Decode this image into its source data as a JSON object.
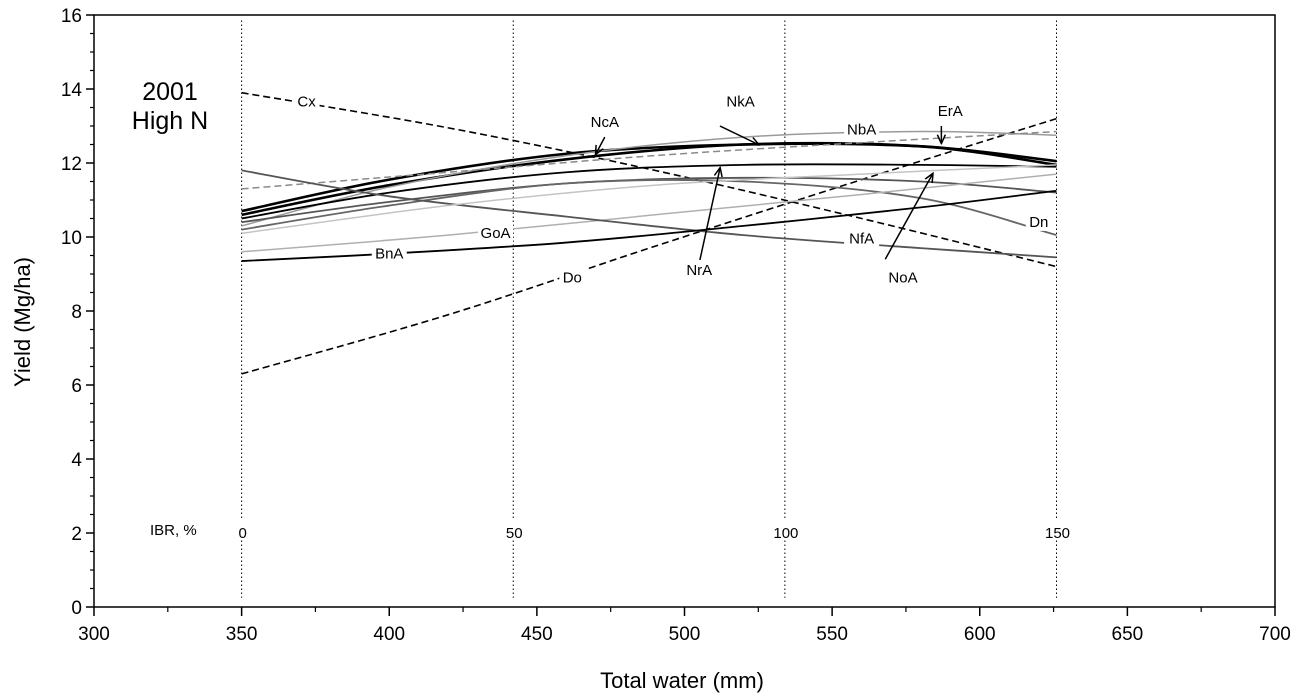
{
  "chart_data": {
    "type": "line",
    "title": "",
    "panel_title_lines": [
      "2001",
      "High N"
    ],
    "xlabel": "Total water (mm)",
    "ylabel": "Yield (Mg/ha)",
    "xlim": [
      300,
      700
    ],
    "ylim": [
      0,
      16
    ],
    "xticks": [
      300,
      350,
      400,
      450,
      500,
      550,
      600,
      650,
      700
    ],
    "yticks": [
      0,
      2,
      4,
      6,
      8,
      10,
      12,
      14,
      16
    ],
    "grid": false,
    "legend": "none",
    "reference_lines": {
      "label": "IBR, %",
      "lines": [
        {
          "x": 350,
          "label": "0"
        },
        {
          "x": 442,
          "label": "50"
        },
        {
          "x": 534,
          "label": "100"
        },
        {
          "x": 626,
          "label": "150"
        }
      ]
    },
    "series": [
      {
        "name": "Cx",
        "style": "dashed",
        "color": "#000000",
        "x": [
          350,
          420,
          490,
          560,
          626
        ],
        "y": [
          13.9,
          12.95,
          11.8,
          10.5,
          9.2
        ]
      },
      {
        "name": "Do",
        "style": "dashed",
        "color": "#000000",
        "x": [
          350,
          420,
          490,
          560,
          626
        ],
        "y": [
          6.3,
          7.9,
          9.75,
          11.55,
          13.2
        ]
      },
      {
        "name": "NcA",
        "style": "bold",
        "color": "#000000",
        "x": [
          350,
          400,
          460,
          520,
          580,
          626
        ],
        "y": [
          10.7,
          11.55,
          12.25,
          12.5,
          12.45,
          12.05
        ]
      },
      {
        "name": "NkA",
        "style": "bold",
        "color": "#000000",
        "x": [
          350,
          400,
          460,
          520,
          580,
          626
        ],
        "y": [
          10.6,
          11.4,
          12.1,
          12.5,
          12.45,
          11.95
        ]
      },
      {
        "name": "NbA",
        "style": "light",
        "color": "#9a9a9a",
        "x": [
          350,
          400,
          460,
          520,
          580,
          626
        ],
        "y": [
          10.3,
          11.35,
          12.2,
          12.7,
          12.85,
          12.75
        ]
      },
      {
        "name": "ErA",
        "style": "dashed-light",
        "color": "#8a8a8a",
        "x": [
          350,
          420,
          490,
          560,
          626
        ],
        "y": [
          11.3,
          11.75,
          12.2,
          12.55,
          12.85
        ]
      },
      {
        "name": "NrA",
        "style": "medium",
        "color": "#000000",
        "x": [
          350,
          400,
          460,
          520,
          580,
          626
        ],
        "y": [
          10.5,
          11.2,
          11.75,
          11.95,
          11.95,
          11.9
        ]
      },
      {
        "name": "NoA",
        "style": "medium",
        "color": "#555555",
        "x": [
          350,
          400,
          460,
          520,
          580,
          626
        ],
        "y": [
          10.4,
          10.95,
          11.45,
          11.6,
          11.5,
          11.2
        ]
      },
      {
        "name": "Dn",
        "style": "medium",
        "color": "#666666",
        "x": [
          350,
          400,
          460,
          520,
          580,
          626
        ],
        "y": [
          10.2,
          10.85,
          11.45,
          11.5,
          11.05,
          10.05
        ]
      },
      {
        "name": "GoA",
        "style": "light",
        "color": "#b0b0b0",
        "x": [
          350,
          420,
          490,
          560,
          626
        ],
        "y": [
          9.6,
          10.05,
          10.6,
          11.15,
          11.7
        ]
      },
      {
        "name": "NfA",
        "style": "medium",
        "color": "#555555",
        "x": [
          350,
          400,
          460,
          520,
          580,
          626
        ],
        "y": [
          11.8,
          11.1,
          10.55,
          10.05,
          9.7,
          9.45
        ]
      },
      {
        "name": "BnA",
        "style": "medium",
        "color": "#000000",
        "x": [
          350,
          400,
          460,
          520,
          580,
          626
        ],
        "y": [
          9.35,
          9.55,
          9.85,
          10.3,
          10.8,
          11.25
        ]
      },
      {
        "name": "",
        "style": "light",
        "color": "#c4c4c4",
        "x": [
          350,
          420,
          490,
          560,
          626
        ],
        "y": [
          10.1,
          10.85,
          11.4,
          11.7,
          11.95
        ]
      }
    ],
    "annotations": [
      {
        "text": "Cx",
        "x": 372,
        "y": 13.55
      },
      {
        "text": "NcA",
        "x": 473,
        "y": 13.0
      },
      {
        "text": "NkA",
        "x": 519,
        "y": 13.55
      },
      {
        "text": "NbA",
        "x": 560,
        "y": 12.8
      },
      {
        "text": "ErA",
        "x": 590,
        "y": 13.3
      },
      {
        "text": "GoA",
        "x": 436,
        "y": 10.0
      },
      {
        "text": "BnA",
        "x": 400,
        "y": 9.45
      },
      {
        "text": "Do",
        "x": 462,
        "y": 8.8
      },
      {
        "text": "NrA",
        "x": 505,
        "y": 9.0
      },
      {
        "text": "NfA",
        "x": 560,
        "y": 9.85
      },
      {
        "text": "NoA",
        "x": 574,
        "y": 8.8
      },
      {
        "text": "Dn",
        "x": 620,
        "y": 10.3
      }
    ],
    "arrows": [
      {
        "label": "NcA",
        "from": [
          473,
          12.7
        ],
        "to": [
          470,
          12.25
        ]
      },
      {
        "label": "NkA",
        "from": [
          512,
          13.0
        ],
        "to": [
          525,
          12.5
        ]
      },
      {
        "label": "ErA",
        "from": [
          587,
          13.0
        ],
        "to": [
          587,
          12.55
        ]
      },
      {
        "label": "NrA",
        "from": [
          505,
          9.3
        ],
        "to": [
          512,
          11.85
        ]
      },
      {
        "label": "NoA",
        "from": [
          568,
          9.4
        ],
        "to": [
          584,
          11.7
        ]
      }
    ]
  }
}
